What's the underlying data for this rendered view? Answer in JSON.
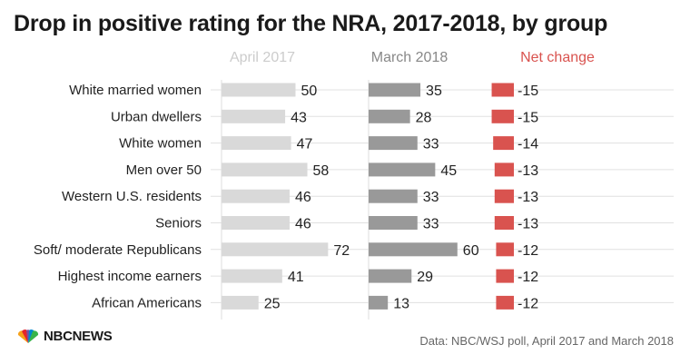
{
  "title": "Drop in positive rating for the NRA, 2017-2018, by group",
  "source": "Data: NBC/WSJ poll, April 2017 and March 2018",
  "logo_text": "NBCNEWS",
  "colors": {
    "april": "#d9d9d9",
    "march": "#999999",
    "net": "#d9534f",
    "april_head": "#cccccc",
    "march_head": "#888888",
    "net_head": "#d9534f",
    "grid": "#e0e0e0"
  },
  "chart_data": {
    "type": "bar",
    "columns": [
      "April 2017",
      "March 2018",
      "Net change"
    ],
    "categories": [
      "White married women",
      "Urban dwellers",
      "White women",
      "Men over 50",
      "Western U.S. residents",
      "Seniors",
      "Soft/ moderate Republicans",
      "Highest income earners",
      "African Americans"
    ],
    "series": [
      {
        "name": "April 2017",
        "values": [
          50,
          43,
          47,
          58,
          46,
          46,
          72,
          41,
          25
        ]
      },
      {
        "name": "March 2018",
        "values": [
          35,
          28,
          33,
          45,
          33,
          33,
          60,
          29,
          13
        ]
      },
      {
        "name": "Net change",
        "values": [
          -15,
          -15,
          -14,
          -13,
          -13,
          -13,
          -12,
          -12,
          -12
        ]
      }
    ],
    "grid": true
  }
}
